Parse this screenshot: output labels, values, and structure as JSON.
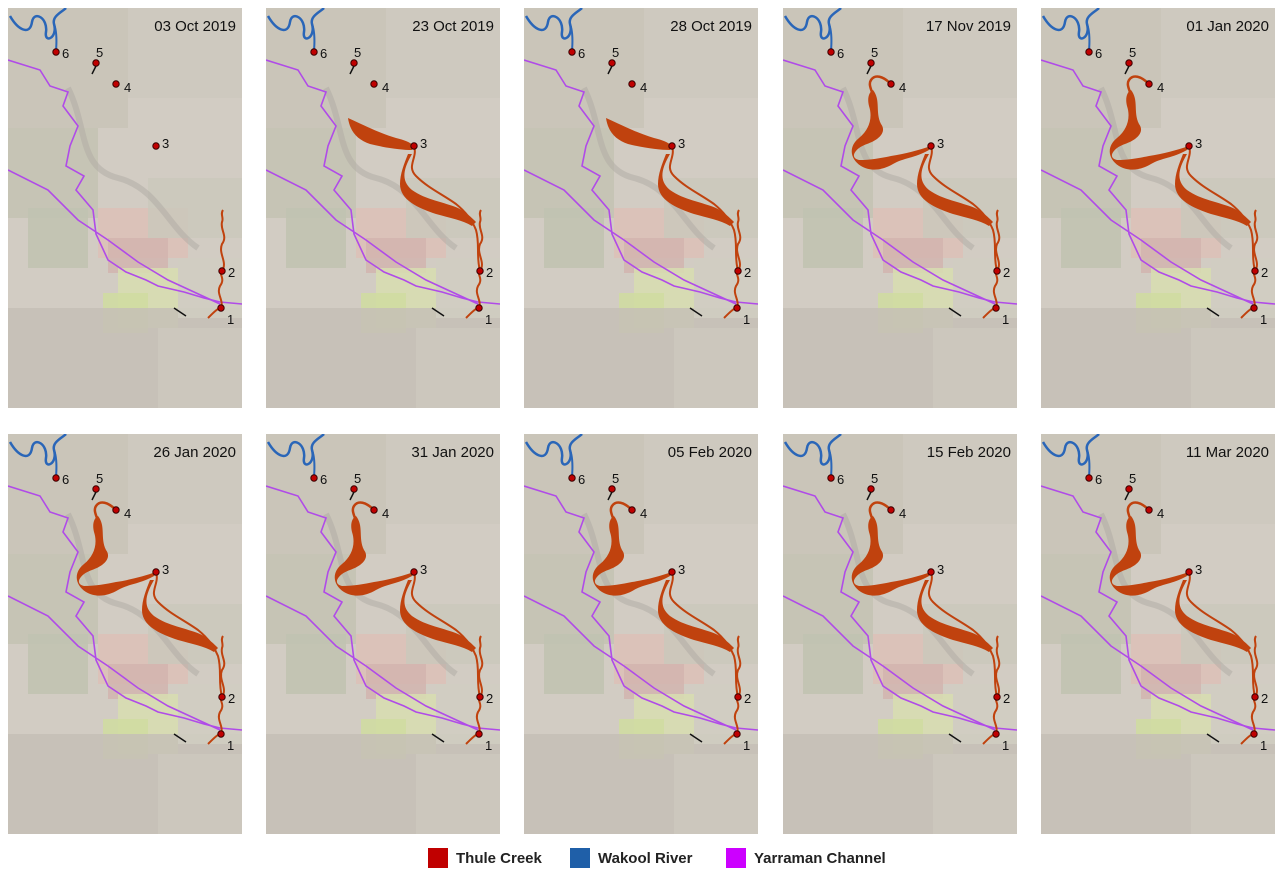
{
  "panels": [
    {
      "date": "03 Oct 2019",
      "flow": "none"
    },
    {
      "date": "23 Oct 2019",
      "flow": "mid"
    },
    {
      "date": "28 Oct 2019",
      "flow": "mid"
    },
    {
      "date": "17 Nov 2019",
      "flow": "full"
    },
    {
      "date": "01 Jan 2020",
      "flow": "full"
    },
    {
      "date": "26 Jan 2020",
      "flow": "full"
    },
    {
      "date": "31 Jan 2020",
      "flow": "full"
    },
    {
      "date": "05 Feb 2020",
      "flow": "full"
    },
    {
      "date": "15 Feb 2020",
      "flow": "full"
    },
    {
      "date": "11 Mar 2020",
      "flow": "full"
    }
  ],
  "site_labels": [
    "1",
    "2",
    "3",
    "4",
    "5",
    "6"
  ],
  "legend": [
    {
      "label": "Thule Creek",
      "color": "#c00000"
    },
    {
      "label": "Wakool River",
      "color": "#1f5fa8"
    },
    {
      "label": "Yarraman Channel",
      "color": "#cc00ff"
    }
  ],
  "colors": {
    "flow": "#c0420e",
    "river": "#2a66b8",
    "channel": "#b04be8"
  }
}
